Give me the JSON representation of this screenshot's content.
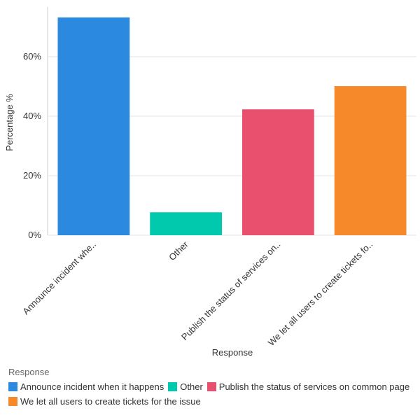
{
  "chart_data": {
    "type": "bar",
    "x_label": "Response",
    "y_label": "Percentage %",
    "categories": [
      "Announce incident whe..",
      "Other",
      "Publish the status of services on..",
      "We let all users to create tickets fo.."
    ],
    "values": [
      73.2,
      7.7,
      42.3,
      50.1
    ],
    "colors": [
      "#2b8ae0",
      "#00c9ad",
      "#e8506e",
      "#f68a2a"
    ],
    "ylim": [
      0,
      76.7
    ],
    "yticks": [
      {
        "value": 0,
        "label": "0%"
      },
      {
        "value": 20,
        "label": "20%"
      },
      {
        "value": 40,
        "label": "40%"
      },
      {
        "value": 60,
        "label": "60%"
      }
    ],
    "grid": true,
    "legend": {
      "title": "Response",
      "labels": [
        "Announce incident when it happens",
        "Other",
        "Publish the status of services on common page",
        "We let all users to create tickets for the issue"
      ],
      "position": "bottom"
    }
  }
}
